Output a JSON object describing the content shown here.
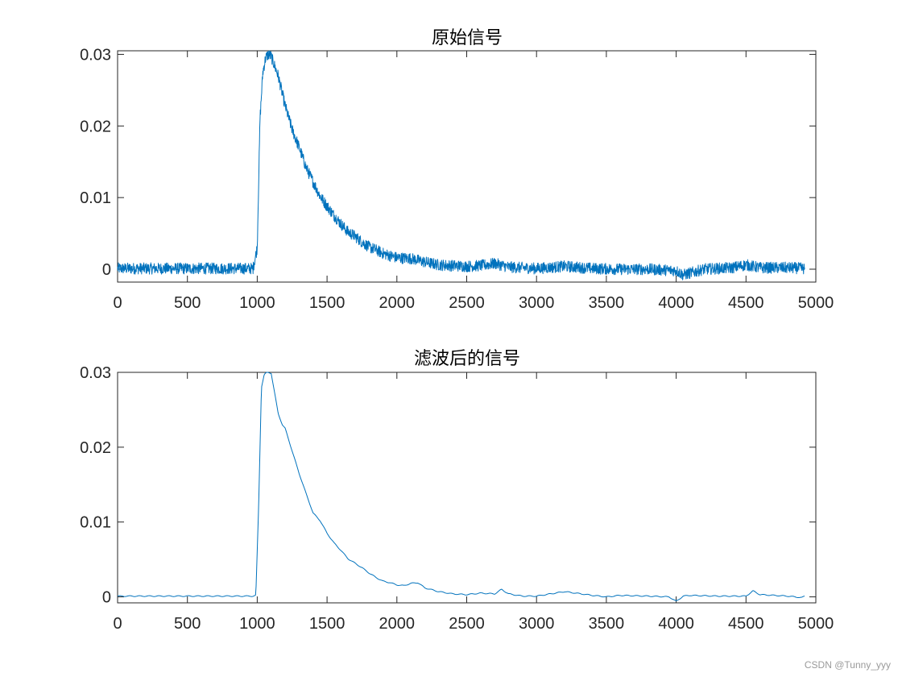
{
  "chart_data": [
    {
      "type": "line",
      "title": "原始信号",
      "xlabel": "",
      "ylabel": "",
      "xlim": [
        0,
        5000
      ],
      "ylim": [
        -0.0018,
        0.0305
      ],
      "xticks": [
        0,
        500,
        1000,
        1500,
        2000,
        2500,
        3000,
        3500,
        4000,
        4500,
        5000
      ],
      "yticks": [
        0,
        0.01,
        0.02,
        0.03
      ],
      "ytick_labels": [
        "0",
        "0.01",
        "0.02",
        "0.03"
      ],
      "grid": false,
      "legend": "none",
      "color": "#0072BD",
      "noise_amplitude": 0.0008,
      "series": [
        {
          "x": [
            0,
            970,
            1000,
            1020,
            1040,
            1060,
            1080,
            1100,
            1150,
            1200,
            1250,
            1300,
            1350,
            1400,
            1450,
            1500,
            1550,
            1600,
            1650,
            1700,
            1750,
            1800,
            1850,
            1900,
            1950,
            2000,
            2100,
            2200,
            2300,
            2400,
            2500,
            2600,
            2700,
            2800,
            2900,
            3000,
            3200,
            3400,
            3600,
            3800,
            4000,
            4050,
            4200,
            4400,
            4500,
            4600,
            4800,
            4920
          ],
          "values": [
            0.0001,
            0.0001,
            0.003,
            0.021,
            0.0275,
            0.0295,
            0.03,
            0.0297,
            0.027,
            0.0228,
            0.0195,
            0.017,
            0.0142,
            0.0122,
            0.0102,
            0.0088,
            0.0075,
            0.0063,
            0.0052,
            0.0046,
            0.0038,
            0.0031,
            0.0027,
            0.0022,
            0.0019,
            0.0016,
            0.0015,
            0.001,
            0.0006,
            0.0005,
            0.0004,
            0.0005,
            0.0008,
            0.0003,
            0.0002,
            0.0001,
            0.0004,
            0.0001,
            0.0,
            0.0,
            -0.0002,
            -0.0008,
            0.0,
            0.0002,
            0.0006,
            0.0002,
            0.0002,
            0.0001
          ]
        }
      ]
    },
    {
      "type": "line",
      "title": "滤波后的信号",
      "xlabel": "",
      "ylabel": "",
      "xlim": [
        0,
        5000
      ],
      "ylim": [
        -0.0008,
        0.03
      ],
      "xticks": [
        0,
        500,
        1000,
        1500,
        2000,
        2500,
        3000,
        3500,
        4000,
        4500,
        5000
      ],
      "yticks": [
        0,
        0.01,
        0.02,
        0.03
      ],
      "ytick_labels": [
        "0",
        "0.01",
        "0.02",
        "0.03"
      ],
      "grid": false,
      "legend": "none",
      "color": "#0072BD",
      "series": [
        {
          "x": [
            0,
            500,
            970,
            990,
            1010,
            1030,
            1050,
            1070,
            1100,
            1150,
            1180,
            1200,
            1250,
            1300,
            1350,
            1400,
            1450,
            1500,
            1550,
            1600,
            1650,
            1700,
            1750,
            1800,
            1850,
            1900,
            1950,
            2000,
            2050,
            2100,
            2150,
            2200,
            2300,
            2400,
            2500,
            2600,
            2700,
            2750,
            2800,
            2900,
            3000,
            3200,
            3400,
            3500,
            3600,
            3800,
            3950,
            4000,
            4050,
            4100,
            4300,
            4500,
            4550,
            4600,
            4800,
            4900,
            4920
          ],
          "values": [
            0.0001,
            0.0001,
            0.0001,
            0.0002,
            0.012,
            0.028,
            0.0297,
            0.03,
            0.0299,
            0.0245,
            0.023,
            0.0225,
            0.0195,
            0.0165,
            0.0138,
            0.0112,
            0.0102,
            0.0085,
            0.0072,
            0.0062,
            0.0051,
            0.0045,
            0.0039,
            0.0032,
            0.0026,
            0.0021,
            0.0019,
            0.0016,
            0.0015,
            0.0018,
            0.0019,
            0.0012,
            0.0007,
            0.0004,
            0.0003,
            0.0005,
            0.0004,
            0.001,
            0.0004,
            0.0001,
            0.0001,
            0.0007,
            0.0002,
            0.0,
            0.0002,
            0.0001,
            0.0,
            -0.0006,
            0.0001,
            0.0002,
            0.0001,
            0.0001,
            0.0008,
            0.0003,
            0.0001,
            -0.0001,
            0.0001
          ]
        }
      ]
    }
  ],
  "watermark": "CSDN @Tunny_yyy"
}
